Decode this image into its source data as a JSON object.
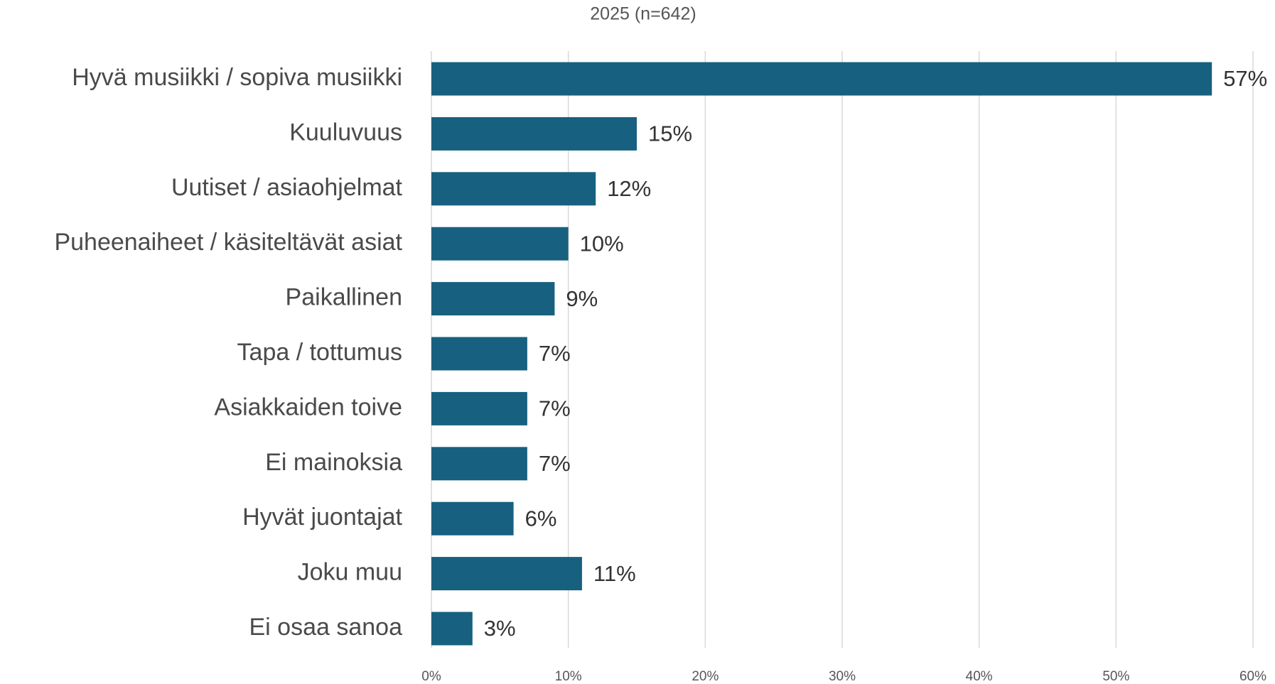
{
  "chart_data": {
    "type": "hbar",
    "title": "2025 (n=642)",
    "categories": [
      "Hyvä musiikki / sopiva musiikki",
      "Kuuluvuus",
      "Uutiset / asiaohjelmat",
      "Puheenaiheet / käsiteltävät asiat",
      "Paikallinen",
      "Tapa / tottumus",
      "Asiakkaiden toive",
      "Ei mainoksia",
      "Hyvät juontajat",
      "Joku muu",
      "Ei osaa sanoa"
    ],
    "values": [
      57,
      15,
      12,
      10,
      9,
      7,
      7,
      7,
      6,
      11,
      3
    ],
    "value_labels": [
      "57%",
      "15%",
      "12%",
      "10%",
      "9%",
      "7%",
      "7%",
      "7%",
      "6%",
      "11%",
      "3%"
    ],
    "color": "#17607f",
    "xlim": [
      0,
      60
    ],
    "xticks": [
      {
        "value": 0,
        "label": "0%"
      },
      {
        "value": 10,
        "label": "10%"
      },
      {
        "value": 20,
        "label": "20%"
      },
      {
        "value": 30,
        "label": "30%"
      },
      {
        "value": 40,
        "label": "40%"
      },
      {
        "value": 50,
        "label": "50%"
      },
      {
        "value": 60,
        "label": "60%"
      }
    ],
    "grid": true
  }
}
